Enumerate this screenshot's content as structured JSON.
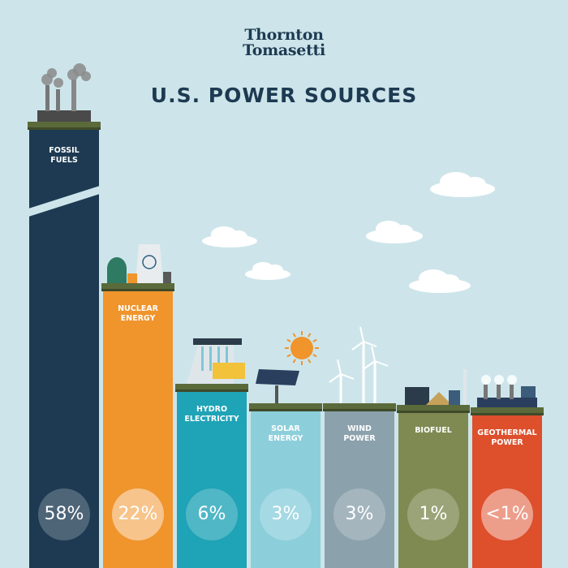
{
  "logo": {
    "line1": "Thornton",
    "line2": "Tomasetti"
  },
  "title": "U.S. POWER SOURCES",
  "colors": {
    "background": "#cde5ea",
    "title": "#1d3a52",
    "fossil": "#1d3a52",
    "nuclear": "#f0942c",
    "hydro": "#1fa3b6",
    "solar": "#8ccfdb",
    "wind": "#8ba1ac",
    "biofuel": "#7f8a52",
    "geothermal": "#de4f2c"
  },
  "chart_data": {
    "type": "bar",
    "title": "U.S. POWER SOURCES",
    "categories": [
      "FOSSIL FUELS",
      "NUCLEAR ENERGY",
      "HYDRO ELECTRICITY",
      "SOLAR ENERGY",
      "WIND POWER",
      "BIOFUEL",
      "GEOTHERMAL POWER"
    ],
    "values": [
      58,
      22,
      6,
      3,
      3,
      1,
      0.5
    ],
    "value_labels": [
      "58%",
      "22%",
      "6%",
      "3%",
      "3%",
      "1%",
      "<1%"
    ],
    "label_lines": [
      [
        "FOSSIL",
        "FUELS"
      ],
      [
        "NUCLEAR",
        "ENERGY"
      ],
      [
        "HYDRO",
        "ELECTRICITY"
      ],
      [
        "SOLAR",
        "ENERGY"
      ],
      [
        "WIND",
        "POWER"
      ],
      [
        "BIOFUEL"
      ],
      [
        "GEOTHERMAL",
        "POWER"
      ]
    ],
    "icons": [
      "power-plant-icon",
      "nuclear-plant-icon",
      "hydro-dam-icon",
      "solar-panel-icon",
      "wind-turbine-icon",
      "biofuel-plant-icon",
      "geothermal-plant-icon"
    ],
    "broken_axis_bar": "FOSSIL FUELS",
    "grid": false,
    "legend": "none"
  }
}
